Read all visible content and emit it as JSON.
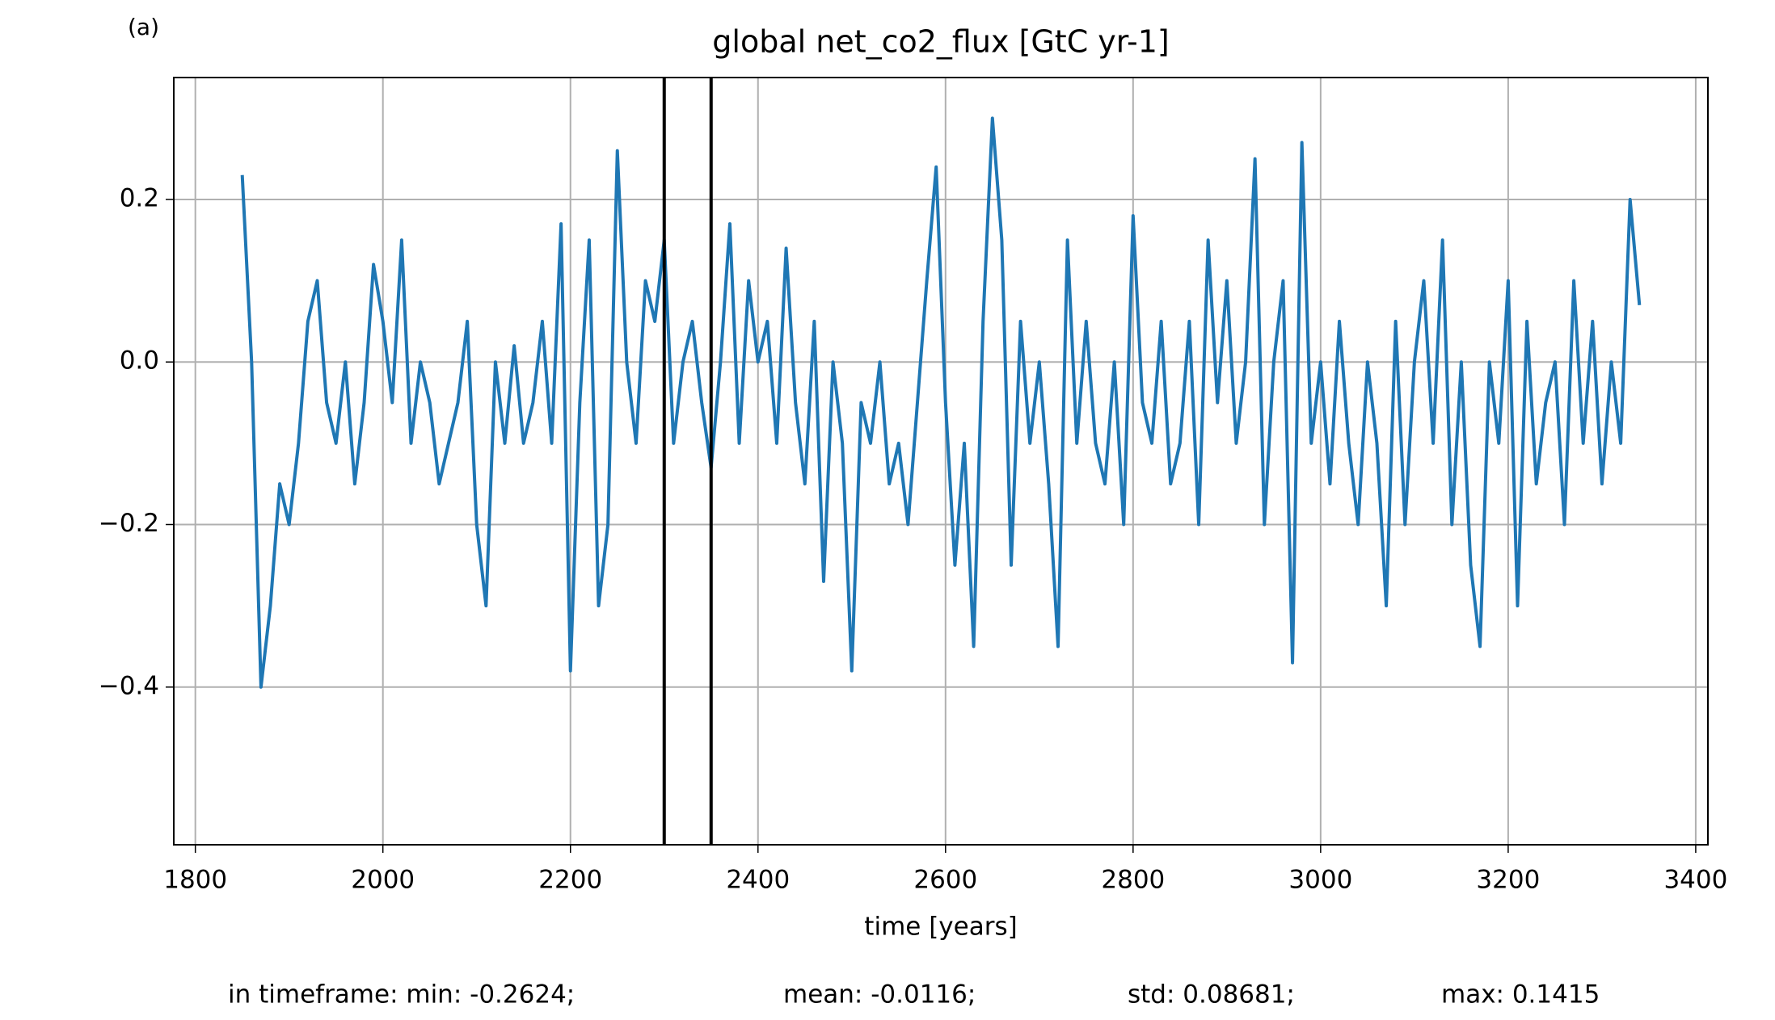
{
  "chart_data": {
    "type": "line",
    "panel_label": "(a)",
    "title": "global net_co2_flux [GtC yr-1]",
    "x_label": "time [years]",
    "footer": [
      "in timeframe: min: -0.2624;",
      "mean: -0.0116;",
      "std: 0.08681;",
      "max: 0.1415"
    ],
    "xlim": [
      1777,
      3413
    ],
    "ylim": [
      -0.594,
      0.35
    ],
    "xticks": [
      1800,
      2000,
      2200,
      2400,
      2600,
      2800,
      3000,
      3200,
      3400
    ],
    "yticks": [
      {
        "value": -0.4,
        "label": "−0.4"
      },
      {
        "value": -0.2,
        "label": "−0.2"
      },
      {
        "value": 0,
        "label": "0.0"
      },
      {
        "value": 0.2,
        "label": "0.2"
      }
    ],
    "grid": true,
    "vlines": [
      2300,
      2350
    ],
    "vline_color": "#000000",
    "x": [
      1850,
      1860,
      1870,
      1880,
      1890,
      1900,
      1910,
      1920,
      1930,
      1940,
      1950,
      1960,
      1970,
      1980,
      1990,
      2000,
      2010,
      2020,
      2030,
      2040,
      2050,
      2060,
      2070,
      2080,
      2090,
      2100,
      2110,
      2120,
      2130,
      2140,
      2150,
      2160,
      2170,
      2180,
      2190,
      2200,
      2210,
      2220,
      2230,
      2240,
      2250,
      2260,
      2270,
      2280,
      2290,
      2300,
      2310,
      2320,
      2330,
      2340,
      2350,
      2360,
      2370,
      2380,
      2390,
      2400,
      2410,
      2420,
      2430,
      2440,
      2450,
      2460,
      2470,
      2480,
      2490,
      2500,
      2510,
      2520,
      2530,
      2540,
      2550,
      2560,
      2570,
      2580,
      2590,
      2600,
      2610,
      2620,
      2630,
      2640,
      2650,
      2660,
      2670,
      2680,
      2690,
      2700,
      2710,
      2720,
      2730,
      2740,
      2750,
      2760,
      2770,
      2780,
      2790,
      2800,
      2810,
      2820,
      2830,
      2840,
      2850,
      2860,
      2870,
      2880,
      2890,
      2900,
      2910,
      2920,
      2930,
      2940,
      2950,
      2960,
      2970,
      2980,
      2990,
      3000,
      3010,
      3020,
      3030,
      3040,
      3050,
      3060,
      3070,
      3080,
      3090,
      3100,
      3110,
      3120,
      3130,
      3140,
      3150,
      3160,
      3170,
      3180,
      3190,
      3200,
      3210,
      3220,
      3230,
      3240,
      3250,
      3260,
      3270,
      3280,
      3290,
      3300,
      3310,
      3320,
      3330,
      3340
    ],
    "series": [
      {
        "color": "#1f77b4",
        "values": [
          0.23,
          0.0,
          -0.4,
          -0.3,
          -0.15,
          -0.2,
          -0.1,
          0.05,
          0.1,
          -0.05,
          -0.1,
          0.0,
          -0.15,
          -0.05,
          0.12,
          0.05,
          -0.05,
          0.15,
          -0.1,
          0.0,
          -0.05,
          -0.15,
          -0.1,
          -0.05,
          0.05,
          -0.2,
          -0.3,
          0.0,
          -0.1,
          0.02,
          -0.1,
          -0.05,
          0.05,
          -0.1,
          0.17,
          -0.38,
          -0.05,
          0.15,
          -0.3,
          -0.2,
          0.26,
          0.0,
          -0.1,
          0.1,
          0.05,
          0.15,
          -0.1,
          0.0,
          0.05,
          -0.05,
          -0.13,
          0.0,
          0.17,
          -0.1,
          0.1,
          0.0,
          0.05,
          -0.1,
          0.14,
          -0.05,
          -0.15,
          0.05,
          -0.27,
          0.0,
          -0.1,
          -0.38,
          -0.05,
          -0.1,
          0.0,
          -0.15,
          -0.1,
          -0.2,
          -0.05,
          0.1,
          0.24,
          -0.05,
          -0.25,
          -0.1,
          -0.35,
          0.05,
          0.3,
          0.15,
          -0.25,
          0.05,
          -0.1,
          0.0,
          -0.15,
          -0.35,
          0.15,
          -0.1,
          0.05,
          -0.1,
          -0.15,
          0.0,
          -0.2,
          0.18,
          -0.05,
          -0.1,
          0.05,
          -0.15,
          -0.1,
          0.05,
          -0.2,
          0.15,
          -0.05,
          0.1,
          -0.1,
          0.0,
          0.25,
          -0.2,
          0.0,
          0.1,
          -0.37,
          0.27,
          -0.1,
          0.0,
          -0.15,
          0.05,
          -0.1,
          -0.2,
          0.0,
          -0.1,
          -0.3,
          0.05,
          -0.2,
          0.0,
          0.1,
          -0.1,
          0.15,
          -0.2,
          0.0,
          -0.25,
          -0.35,
          0.0,
          -0.1,
          0.1,
          -0.3,
          0.05,
          -0.15,
          -0.05,
          0.0,
          -0.2,
          0.1,
          -0.1,
          0.05,
          -0.15,
          0.0,
          -0.1,
          0.2,
          0.07
        ]
      }
    ]
  }
}
